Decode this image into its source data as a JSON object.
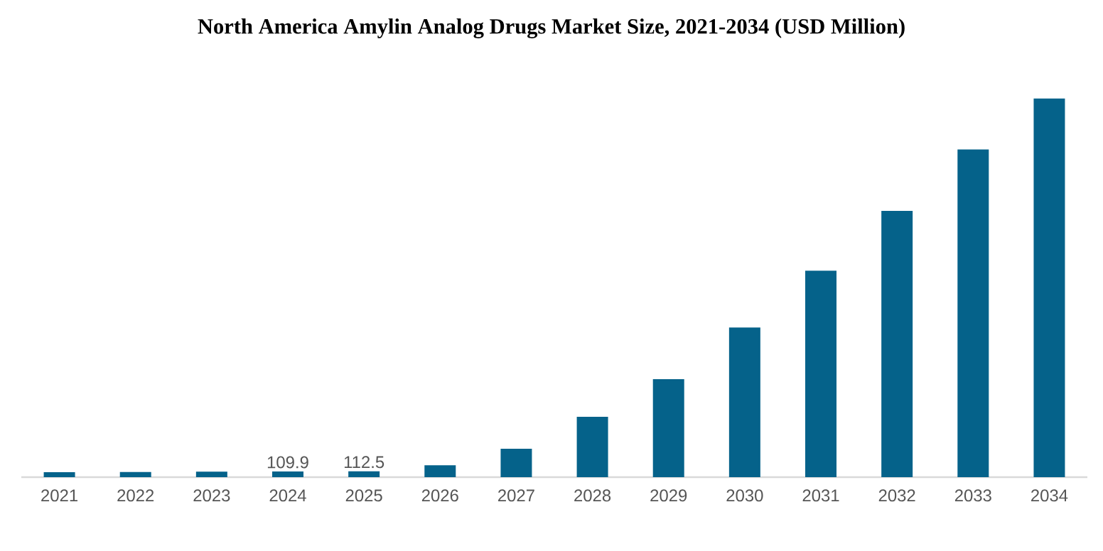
{
  "chart_data": {
    "type": "bar",
    "title": "North America Amylin Analog Drugs Market Size, 2021-2034 (USD Million)",
    "categories": [
      "2021",
      "2022",
      "2023",
      "2024",
      "2025",
      "2026",
      "2027",
      "2028",
      "2029",
      "2030",
      "2031",
      "2032",
      "2033",
      "2034"
    ],
    "values": [
      95,
      100,
      105,
      109.9,
      112.5,
      230,
      550,
      1170,
      1900,
      2900,
      4000,
      5160,
      6350,
      7340
    ],
    "value_labels": [
      null,
      null,
      null,
      "109.9",
      "112.5",
      null,
      null,
      null,
      null,
      null,
      null,
      null,
      null,
      null
    ],
    "color": "#05628a"
  }
}
